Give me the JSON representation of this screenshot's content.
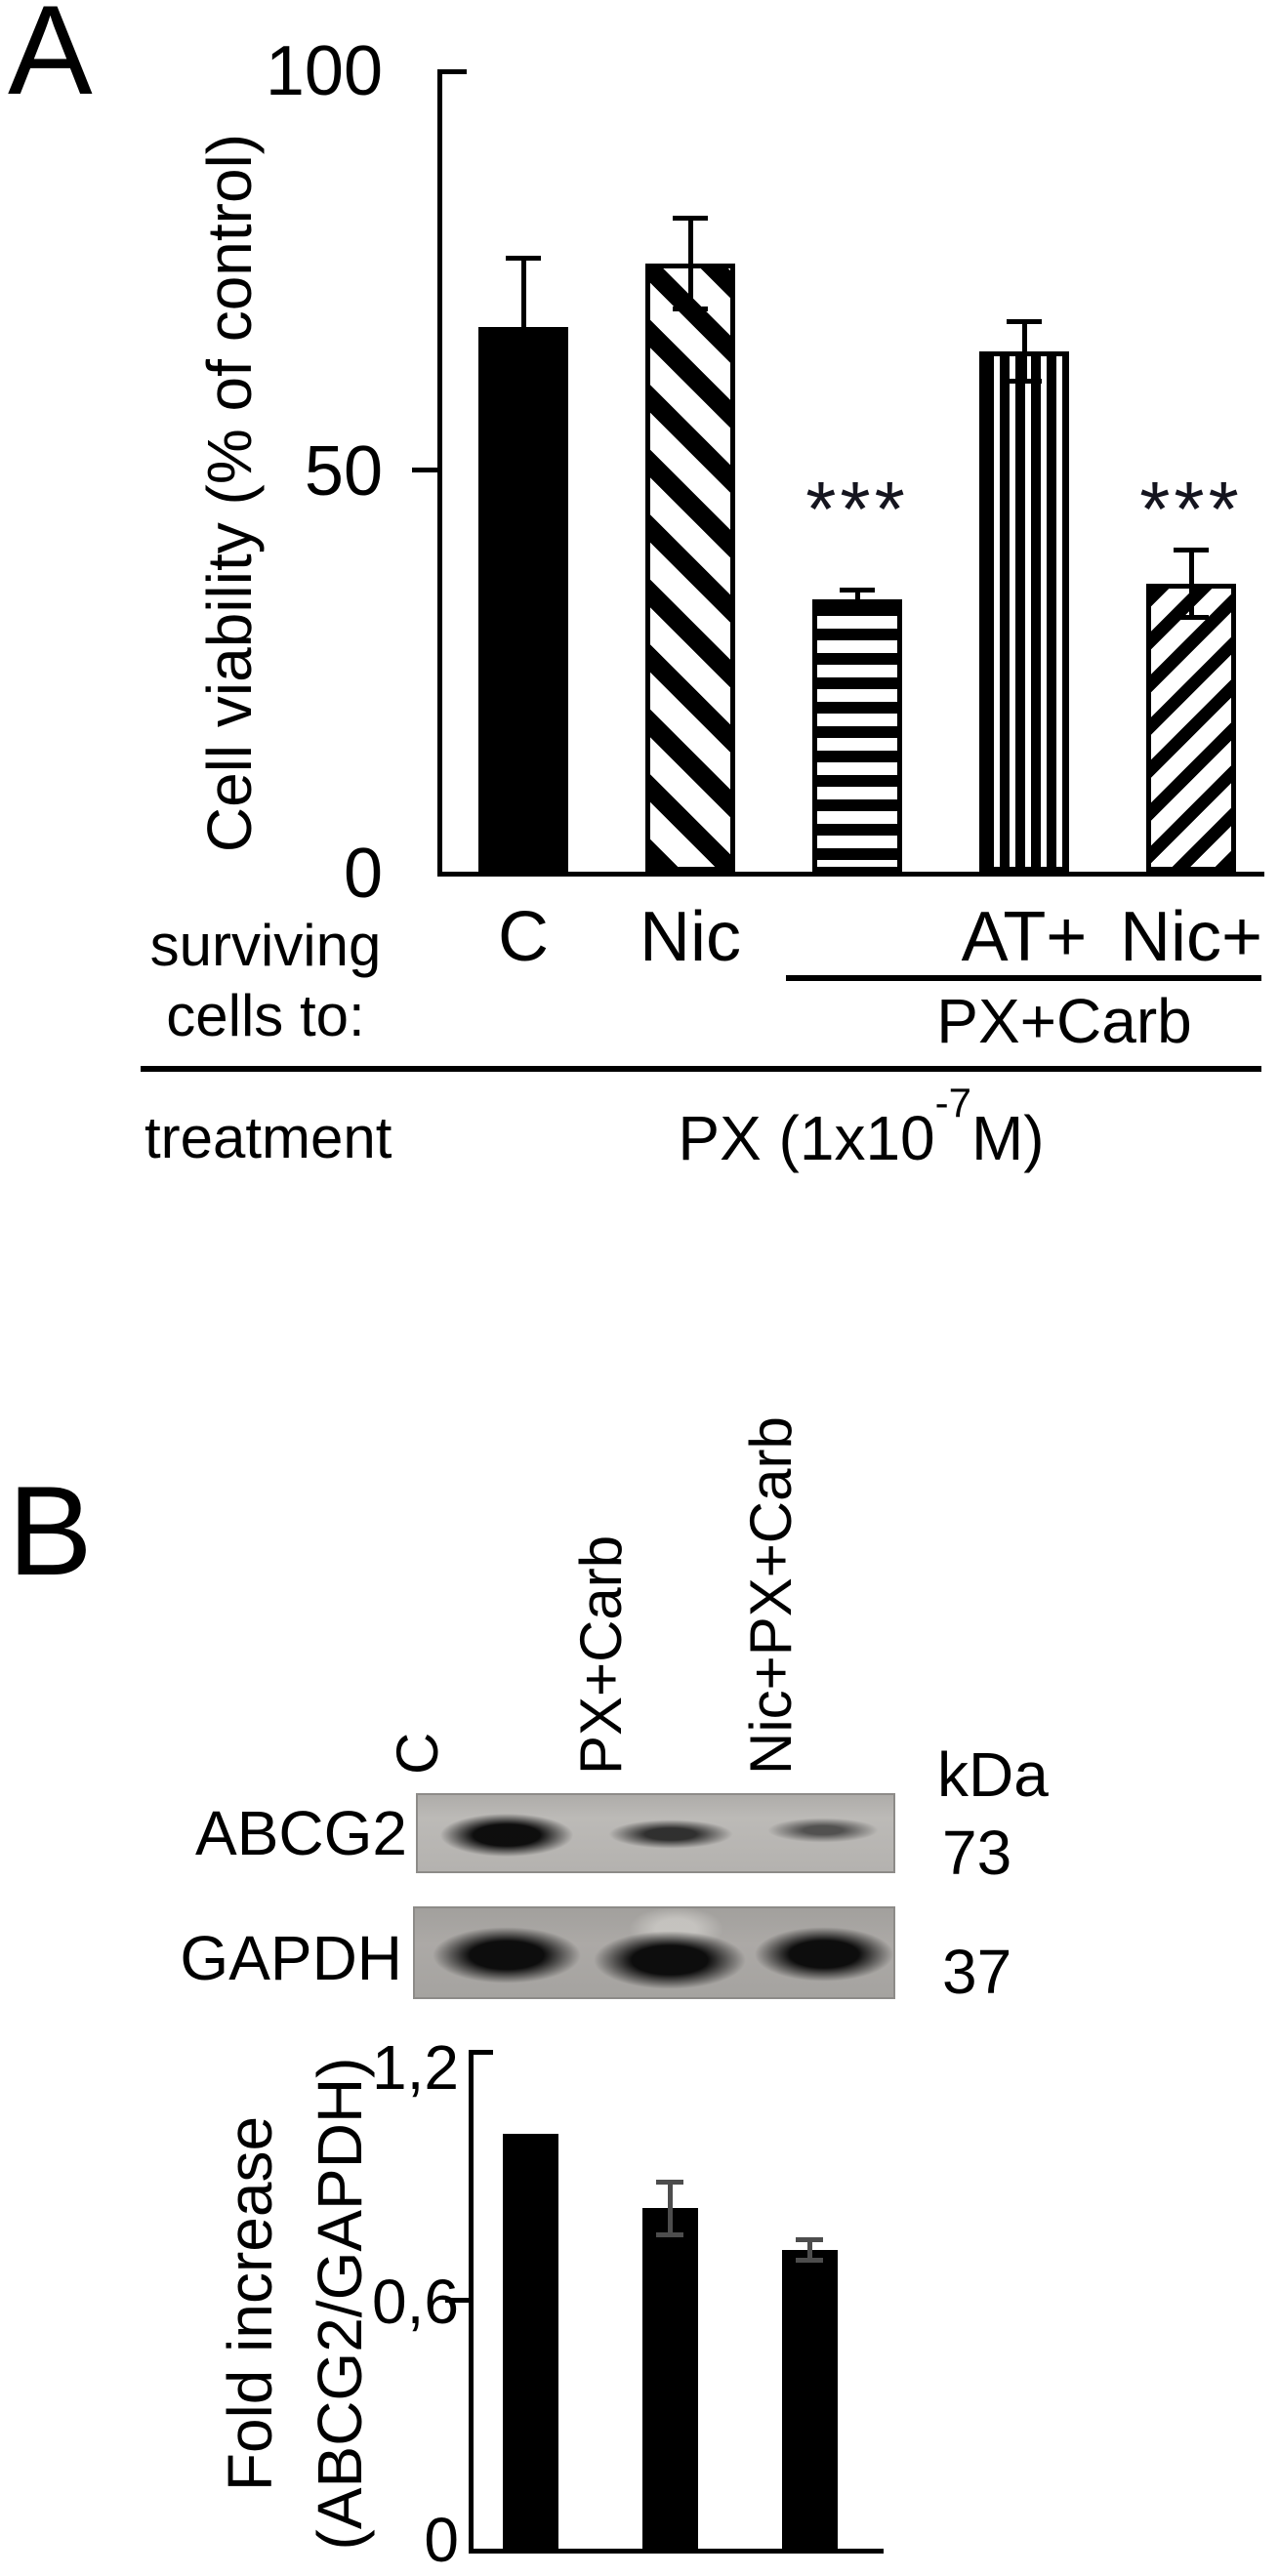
{
  "panel_a": {
    "label": "A",
    "row_header_line1": "surviving",
    "row_header_line2": "cells to:",
    "group_label": "PX+Carb",
    "treatment_row_label": "treatment",
    "treatment_value_base": "PX (1x10",
    "treatment_value_exp": "-7",
    "treatment_value_suffix": "M)"
  },
  "chart_data": [
    {
      "type": "bar",
      "panel": "A",
      "ylabel": "Cell viability (% of control)",
      "ylim": [
        0,
        100
      ],
      "yticks": [
        100,
        50,
        0
      ],
      "ytick_labels": [
        "100",
        "50",
        "0"
      ],
      "categories": [
        "C",
        "Nic",
        "PX+Carb",
        "AT + PX+Carb",
        "Nic + PX+Carb"
      ],
      "x_tick_labels": [
        "C",
        "Nic",
        "",
        "AT+",
        "Nic+"
      ],
      "values": [
        68,
        76,
        34,
        65,
        36
      ],
      "errors": [
        9,
        6,
        1.5,
        4,
        4.5
      ],
      "significance": [
        "",
        "",
        "***",
        "",
        "***"
      ],
      "patterns": [
        "solid-black",
        "diagonal-down-hatch",
        "horizontal-stripes",
        "vertical-stripes",
        "diagonal-up-hatch"
      ],
      "grid": false,
      "legend": false
    },
    {
      "type": "bar",
      "panel": "B",
      "ylabel_line1": "Fold increase",
      "ylabel_line2": "(ABCG2/GAPDH)",
      "ylim": [
        0,
        1.2
      ],
      "yticks": [
        1.2,
        0.6,
        0
      ],
      "ytick_labels": [
        "1,2",
        "0,6",
        "0"
      ],
      "categories": [
        "C",
        "PX+Carb",
        "Nic+PX+Carb"
      ],
      "values": [
        1.0,
        0.82,
        0.72
      ],
      "errors": [
        0,
        0.07,
        0.03
      ],
      "patterns": [
        "solid-black",
        "solid-black",
        "solid-black"
      ],
      "grid": false,
      "legend": false
    }
  ],
  "panel_b": {
    "label": "B",
    "lane_labels": [
      "C",
      "PX+Carb",
      "Nic+PX+Carb"
    ],
    "unit_label": "kDa",
    "blots": [
      {
        "protein": "ABCG2",
        "molecular_weight": "73",
        "band_intensities": [
          "strong",
          "medium",
          "weak"
        ]
      },
      {
        "protein": "GAPDH",
        "molecular_weight": "37",
        "band_intensities": [
          "strong",
          "strong",
          "strong"
        ]
      }
    ]
  },
  "colors": {
    "text": "#000000",
    "axis": "#000000",
    "bar_fill": "#000000",
    "significance": "#15151f",
    "error_bar_panel_b": "#4d4d4d",
    "blot_bg_abcg2": "#b6b4b1",
    "blot_bg_gapdh": "#a7a5a2",
    "background": "#ffffff"
  }
}
